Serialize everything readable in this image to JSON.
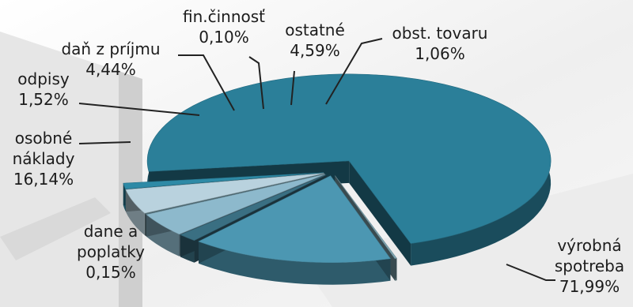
{
  "chart_data": {
    "type": "pie",
    "style": "3d-exploded",
    "legend": "none",
    "slices": [
      {
        "label": "výrobná spotreba",
        "value": 71.99,
        "label_line1": "výrobná",
        "label_line2": "spotreba",
        "value_text": "71,99%",
        "color": "#2b7f99"
      },
      {
        "label": "dane a poplatky",
        "value": 0.15,
        "label_line1": "dane a",
        "label_line2": "poplatky",
        "value_text": "0,15%",
        "color": "#7fa6b2"
      },
      {
        "label": "osobné náklady",
        "value": 16.14,
        "label_line1": "osobné",
        "label_line2": "náklady",
        "value_text": "16,14%",
        "color": "#4c97b2"
      },
      {
        "label": "odpisy",
        "value": 1.52,
        "label_line1": "odpisy",
        "label_line2": "",
        "value_text": "1,52%",
        "color": "#3a6f82"
      },
      {
        "label": "daň z príjmu",
        "value": 4.44,
        "label_line1": "daň z príjmu",
        "label_line2": "",
        "value_text": "4,44%",
        "color": "#8db9cc"
      },
      {
        "label": "fin.činnosť",
        "value": 0.1,
        "label_line1": "fin.činnosť",
        "label_line2": "",
        "value_text": "0,10%",
        "color": "#5d7f8a"
      },
      {
        "label": "ostatné",
        "value": 4.59,
        "label_line1": "ostatné",
        "label_line2": "",
        "value_text": "4,59%",
        "color": "#b9d2de"
      },
      {
        "label": "obst. tovaru",
        "value": 1.06,
        "label_line1": "obst. tovaru",
        "label_line2": "",
        "value_text": "1,06%",
        "color": "#2e8aa6"
      }
    ]
  }
}
